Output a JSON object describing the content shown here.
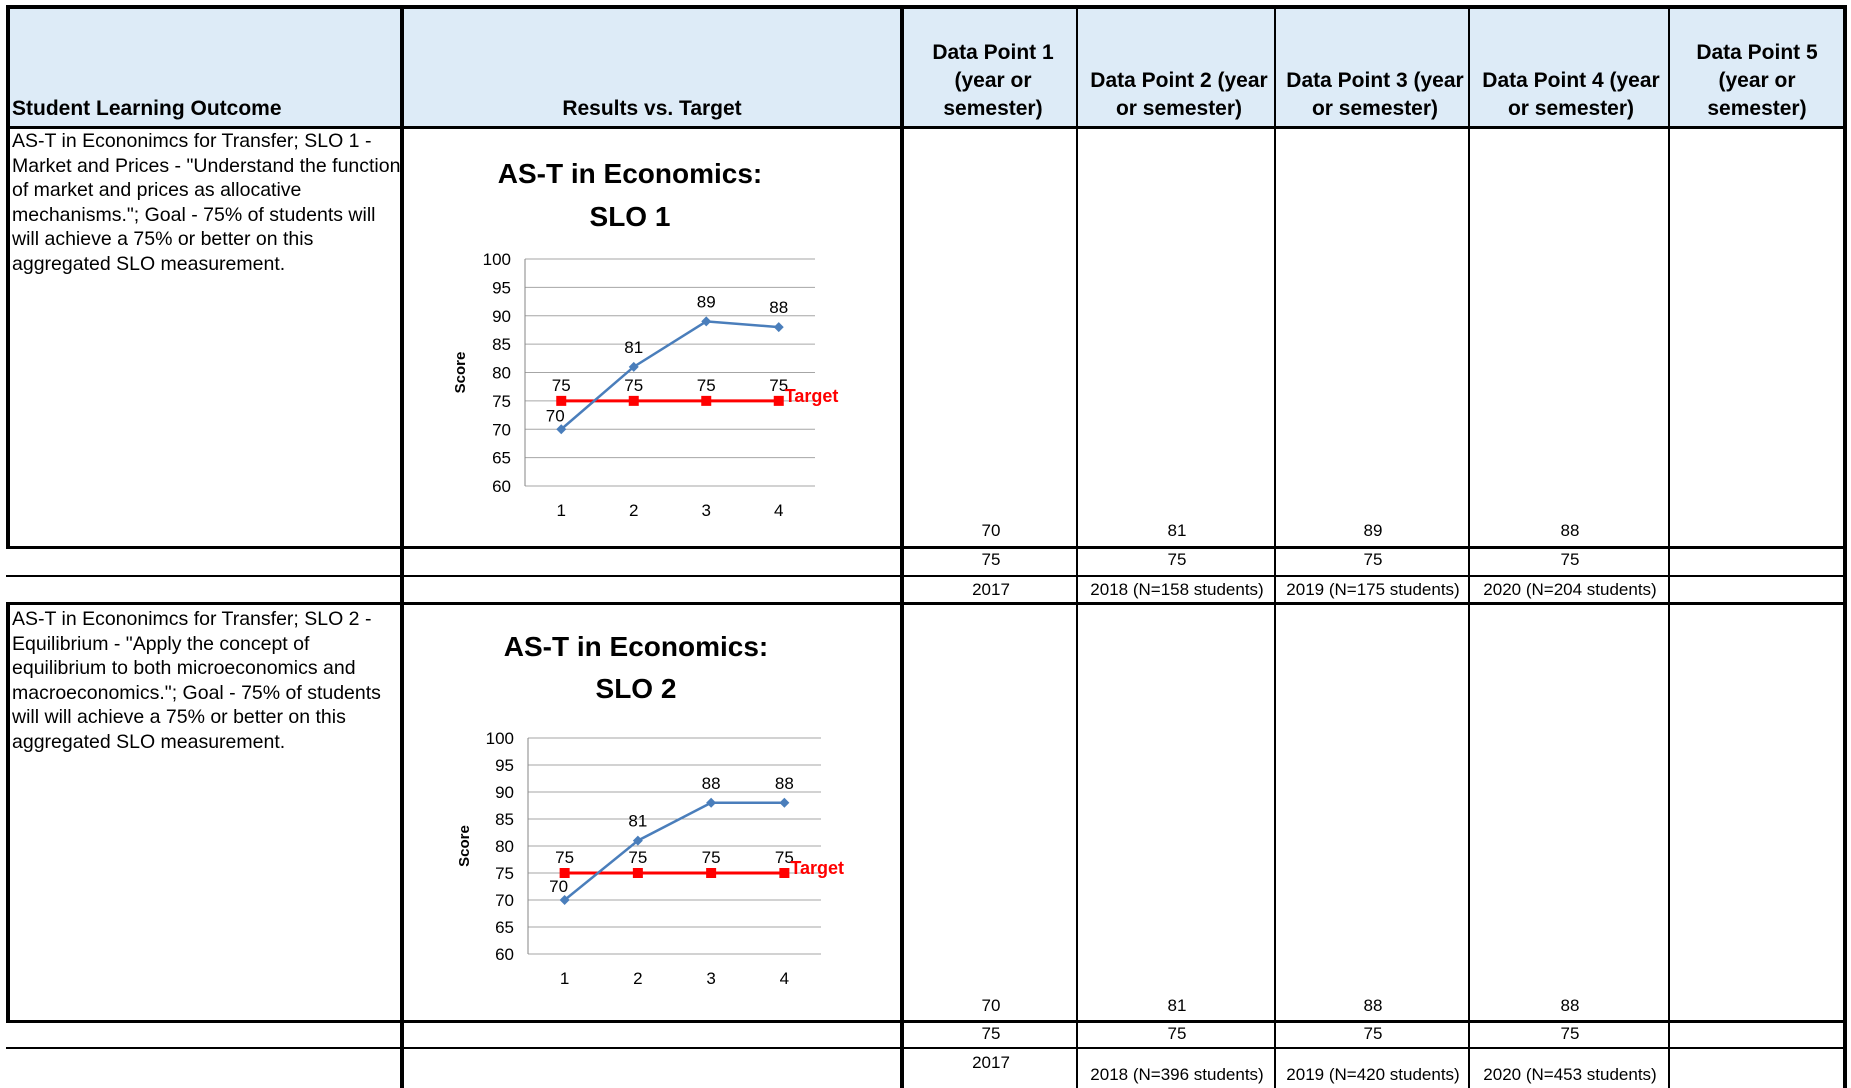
{
  "headers": {
    "slo": "Student Learning Outcome",
    "results": "Results vs. Target",
    "dp1": "Data Point 1 (year or semester)",
    "dp2": "Data Point 2 (year or semester)",
    "dp3": "Data Point 3 (year or semester)",
    "dp4": "Data Point 4 (year or semester)",
    "dp5": "Data Point 5 (year or semester)"
  },
  "rows": [
    {
      "slo_text": "AS-T in Econonimcs for Transfer; SLO 1 - Market and Prices - \"Understand the function of market and prices as allocative mechanisms.\"; Goal -  75% of students will will achieve a 75% or better on this aggregated SLO measurement.",
      "scores": [
        "70",
        "81",
        "89",
        "88"
      ],
      "targets": [
        "75",
        "75",
        "75",
        "75"
      ],
      "periods": [
        "2017",
        "2018 (N=158 students)",
        "2019 (N=175 students)",
        "2020 (N=204 students)"
      ]
    },
    {
      "slo_text": "AS-T in Econonimcs for Transfer; SLO 2 - Equilibrium - \"Apply the concept of equilibrium to both microeconomics and macroeconomics.\"; Goal -  75% of students will will achieve a 75% or better on this aggregated SLO measurement.",
      "scores": [
        "70",
        "81",
        "88",
        "88"
      ],
      "targets": [
        "75",
        "75",
        "75",
        "75"
      ],
      "periods": [
        "2017",
        "2018 (N=396 students)",
        "2019 (N=420 students)",
        "2020 (N=453 students)"
      ]
    }
  ],
  "chart_data": [
    {
      "type": "line",
      "title_line1": "AS-T in Economics:",
      "title_line2": "SLO 1",
      "ylabel": "Score",
      "x": [
        1,
        2,
        3,
        4
      ],
      "ylim": [
        60,
        100
      ],
      "yticks": [
        60,
        65,
        70,
        75,
        80,
        85,
        90,
        95,
        100
      ],
      "grid": true,
      "series": [
        {
          "values": [
            70,
            81,
            89,
            88
          ],
          "color": "#4a7ebb",
          "marker": "diamond"
        },
        {
          "name": "Target",
          "values": [
            75,
            75,
            75,
            75
          ],
          "color": "#ff0000",
          "marker": "square"
        }
      ]
    },
    {
      "type": "line",
      "title_line1": "AS-T in Economics:",
      "title_line2": "SLO 2",
      "ylabel": "Score",
      "x": [
        1,
        2,
        3,
        4
      ],
      "ylim": [
        60,
        100
      ],
      "yticks": [
        60,
        65,
        70,
        75,
        80,
        85,
        90,
        95,
        100
      ],
      "grid": true,
      "series": [
        {
          "values": [
            70,
            81,
            88,
            88
          ],
          "color": "#4a7ebb",
          "marker": "diamond"
        },
        {
          "name": "Target",
          "values": [
            75,
            75,
            75,
            75
          ],
          "color": "#ff0000",
          "marker": "square"
        }
      ]
    }
  ]
}
